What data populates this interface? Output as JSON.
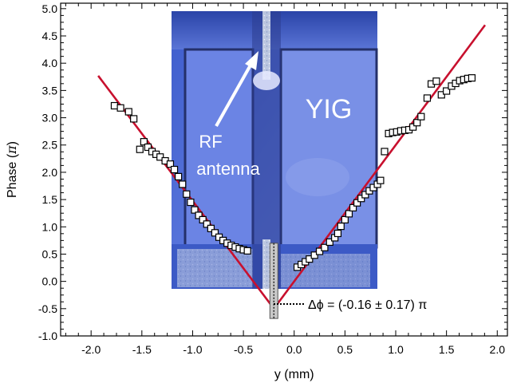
{
  "chart_data": {
    "type": "scatter",
    "title": "",
    "xlabel": "y (mm)",
    "ylabel_text": "Phase (",
    "ylabel_symbol": "π",
    "ylabel_close": ")",
    "xlim": [
      -2.3,
      2.1
    ],
    "ylim": [
      -1.0,
      5.1
    ],
    "x_ticks": [
      {
        "v": -2.0,
        "label": "-2.0"
      },
      {
        "v": -1.5,
        "label": "-1.5"
      },
      {
        "v": -1.0,
        "label": "-1.0"
      },
      {
        "v": -0.5,
        "label": "-0.5"
      },
      {
        "v": 0.0,
        "label": "0.0"
      },
      {
        "v": 0.5,
        "label": "0.5"
      },
      {
        "v": 1.0,
        "label": "1.0"
      },
      {
        "v": 1.5,
        "label": "1.5"
      },
      {
        "v": 2.0,
        "label": "2.0"
      }
    ],
    "y_ticks": [
      {
        "v": -1.0,
        "label": "-1.0"
      },
      {
        "v": -0.5,
        "label": "-0.5"
      },
      {
        "v": 0.0,
        "label": "0.0"
      },
      {
        "v": 0.5,
        "label": "0.5"
      },
      {
        "v": 1.0,
        "label": "1.0"
      },
      {
        "v": 1.5,
        "label": "1.5"
      },
      {
        "v": 2.0,
        "label": "2.0"
      },
      {
        "v": 2.5,
        "label": "2.5"
      },
      {
        "v": 3.0,
        "label": "3.0"
      },
      {
        "v": 3.5,
        "label": "3.5"
      },
      {
        "v": 4.0,
        "label": "4.0"
      },
      {
        "v": 4.5,
        "label": "4.5"
      },
      {
        "v": 5.0,
        "label": "5.0"
      }
    ],
    "grid": false,
    "marker": "open-square",
    "points": [
      [
        -1.77,
        3.22
      ],
      [
        -1.71,
        3.18
      ],
      [
        -1.63,
        3.11
      ],
      [
        -1.58,
        2.98
      ],
      [
        -1.48,
        2.56
      ],
      [
        -1.52,
        2.42
      ],
      [
        -1.44,
        2.46
      ],
      [
        -1.4,
        2.38
      ],
      [
        -1.36,
        2.33
      ],
      [
        -1.32,
        2.28
      ],
      [
        -1.27,
        2.21
      ],
      [
        -1.22,
        2.15
      ],
      [
        -1.18,
        2.05
      ],
      [
        -1.14,
        1.92
      ],
      [
        -1.1,
        1.78
      ],
      [
        -1.06,
        1.6
      ],
      [
        -1.02,
        1.45
      ],
      [
        -0.98,
        1.31
      ],
      [
        -0.94,
        1.21
      ],
      [
        -0.9,
        1.13
      ],
      [
        -0.86,
        1.05
      ],
      [
        -0.82,
        0.97
      ],
      [
        -0.78,
        0.89
      ],
      [
        -0.74,
        0.81
      ],
      [
        -0.7,
        0.75
      ],
      [
        -0.66,
        0.7
      ],
      [
        -0.62,
        0.66
      ],
      [
        -0.58,
        0.63
      ],
      [
        -0.54,
        0.6
      ],
      [
        -0.5,
        0.58
      ],
      [
        -0.46,
        0.56
      ],
      [
        0.03,
        0.26
      ],
      [
        0.07,
        0.31
      ],
      [
        0.11,
        0.36
      ],
      [
        0.15,
        0.41
      ],
      [
        0.2,
        0.48
      ],
      [
        0.25,
        0.55
      ],
      [
        0.3,
        0.62
      ],
      [
        0.35,
        0.72
      ],
      [
        0.4,
        0.8
      ],
      [
        0.43,
        0.88
      ],
      [
        0.46,
        1.01
      ],
      [
        0.5,
        1.13
      ],
      [
        0.54,
        1.24
      ],
      [
        0.58,
        1.35
      ],
      [
        0.62,
        1.44
      ],
      [
        0.66,
        1.52
      ],
      [
        0.7,
        1.59
      ],
      [
        0.74,
        1.66
      ],
      [
        0.78,
        1.72
      ],
      [
        0.82,
        1.78
      ],
      [
        0.85,
        1.85
      ],
      [
        0.89,
        2.38
      ],
      [
        0.93,
        2.71
      ],
      [
        0.97,
        2.73
      ],
      [
        1.01,
        2.74
      ],
      [
        1.05,
        2.76
      ],
      [
        1.09,
        2.77
      ],
      [
        1.13,
        2.78
      ],
      [
        1.17,
        2.83
      ],
      [
        1.21,
        2.91
      ],
      [
        1.25,
        3.02
      ],
      [
        1.31,
        3.36
      ],
      [
        1.35,
        3.62
      ],
      [
        1.4,
        3.67
      ],
      [
        1.45,
        3.42
      ],
      [
        1.5,
        3.49
      ],
      [
        1.55,
        3.58
      ],
      [
        1.59,
        3.63
      ],
      [
        1.63,
        3.68
      ],
      [
        1.67,
        3.7
      ],
      [
        1.71,
        3.72
      ],
      [
        1.75,
        3.73
      ]
    ],
    "fit_lines": [
      {
        "x": [
          -1.93,
          -0.2
        ],
        "y": [
          3.77,
          -0.5
        ],
        "color": "#c8102e"
      },
      {
        "x": [
          -0.2,
          1.88
        ],
        "y": [
          -0.5,
          4.7
        ],
        "color": "#c8102e"
      }
    ],
    "error_bar": {
      "x": -0.2,
      "y_low": -0.68,
      "y_high": 0.7
    },
    "inset_labels": {
      "material": "YIG",
      "antenna_line1": "RF",
      "antenna_line2": "antenna"
    },
    "annotation": "Δϕ = (-0.16 ± 0.17) π"
  },
  "colors": {
    "fit_line": "#c8102e",
    "inset_bg": "#4a6bd4",
    "inset_film": "#6f86e6",
    "inset_text": "#ffffff"
  }
}
